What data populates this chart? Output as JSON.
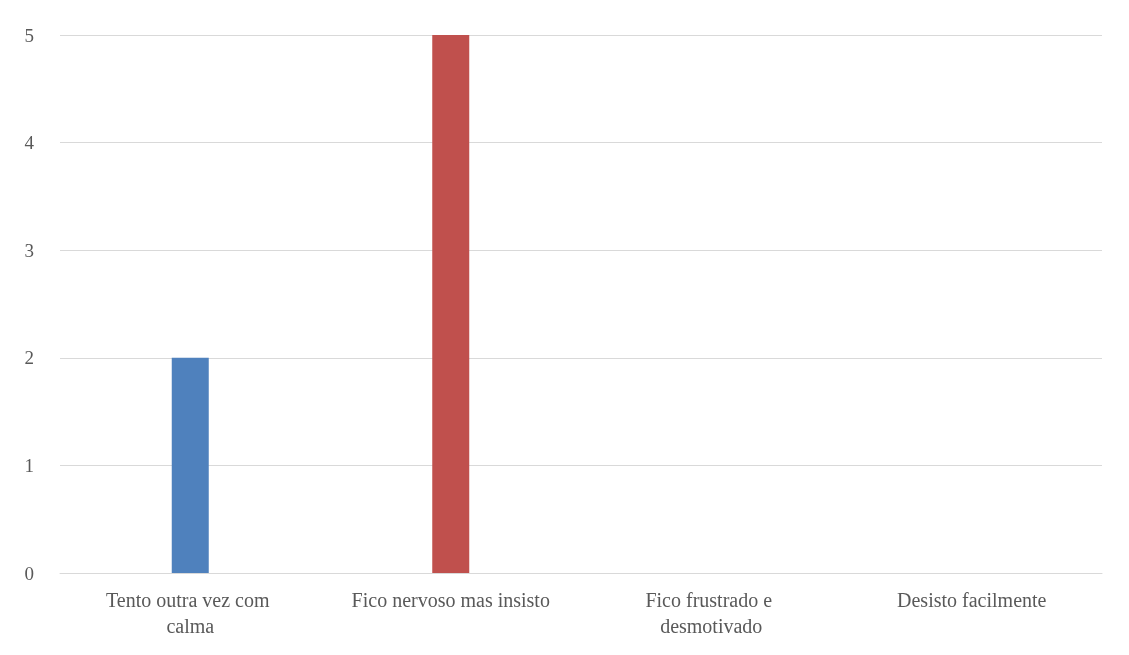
{
  "chart_data": {
    "type": "bar",
    "categories": [
      "Tento outra vez com calma",
      "Fico nervoso mas insisto",
      "Fico frustrado e desmotivado",
      "Desisto facilmente"
    ],
    "values": [
      2,
      5,
      0,
      0
    ],
    "colors": [
      "#4f81bd",
      "#c0504d",
      "#9bbb59",
      "#8064a2"
    ],
    "ylim": [
      0,
      5
    ],
    "yticks": [
      0,
      1,
      2,
      3,
      4,
      5
    ],
    "grid": "y"
  }
}
